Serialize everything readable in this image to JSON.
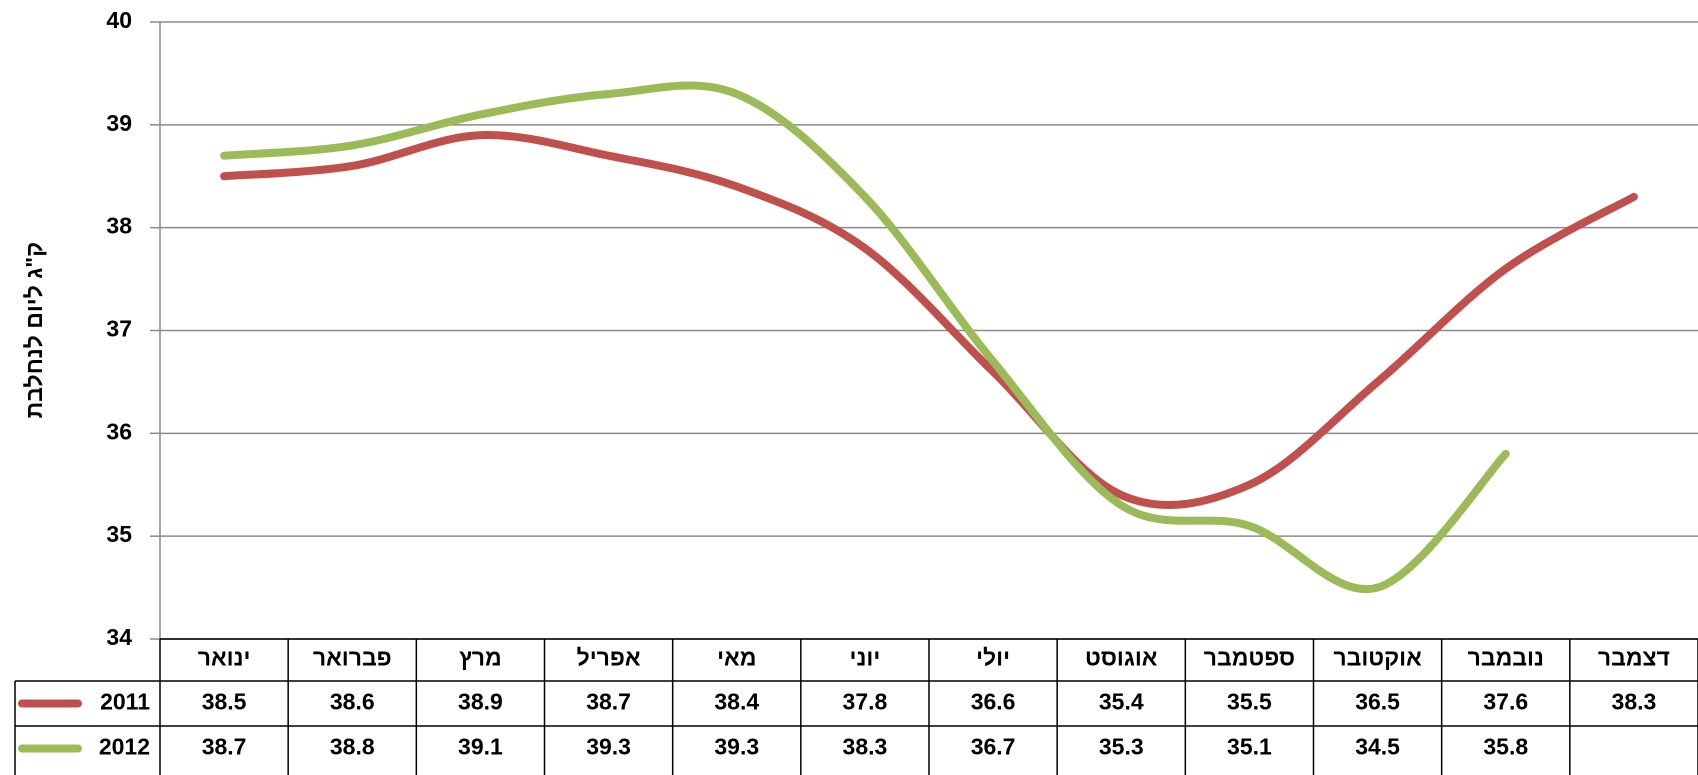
{
  "chart_data": {
    "type": "line",
    "y_label": "ק\"ג ליום לנחלבת",
    "categories": [
      "ינואר",
      "פברואר",
      "מרץ",
      "אפריל",
      "מאי",
      "יוני",
      "יולי",
      "אוגוסט",
      "ספטמבר",
      "אוקטובר",
      "נובמבר",
      "דצמבר"
    ],
    "series": [
      {
        "name": "2011",
        "color": "#c0504d",
        "values": [
          38.5,
          38.6,
          38.9,
          38.7,
          38.4,
          37.8,
          36.6,
          35.4,
          35.5,
          36.5,
          37.6,
          38.3
        ]
      },
      {
        "name": "2012",
        "color": "#9bbb59",
        "values": [
          38.7,
          38.8,
          39.1,
          39.3,
          39.3,
          38.3,
          36.7,
          35.3,
          35.1,
          34.5,
          35.8,
          null
        ]
      }
    ],
    "ylim": [
      34,
      40
    ],
    "yticks": [
      34,
      35,
      36,
      37,
      38,
      39,
      40
    ],
    "grid": true
  }
}
